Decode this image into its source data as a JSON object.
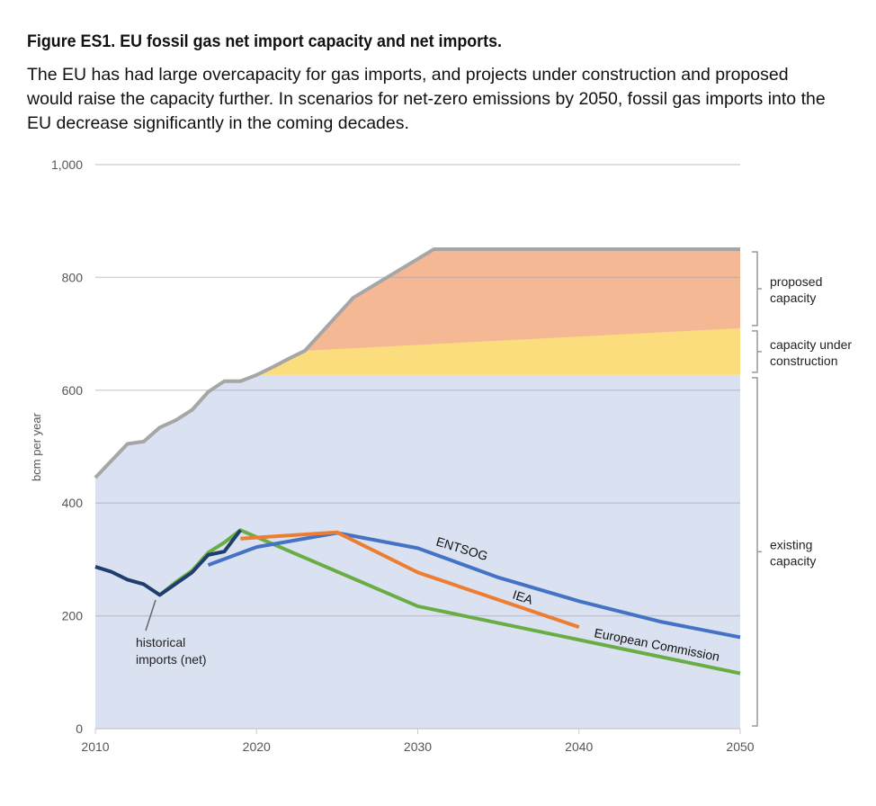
{
  "title": "Figure ES1. EU fossil gas net import capacity and net imports.",
  "subtitle": "The EU has had large overcapacity for gas imports, and projects under construction and proposed would raise the capacity further. In scenarios for net-zero emissions by 2050, fossil gas imports into the EU decrease significantly in the coming decades.",
  "chart_data": {
    "type": "area",
    "ylabel": "bcm per year",
    "xlim": [
      2010,
      2050
    ],
    "ylim": [
      0,
      1000
    ],
    "xticks": [
      "2010",
      "2020",
      "2030",
      "2040",
      "2050"
    ],
    "yticks": [
      "0",
      "200",
      "400",
      "600",
      "800",
      "1,000"
    ],
    "grid": true,
    "areas": [
      {
        "name": "existing capacity",
        "color": "#dae2f2",
        "x": [
          2010,
          2011,
          2012,
          2013,
          2014,
          2015,
          2016,
          2017,
          2018,
          2019,
          2020,
          2050
        ],
        "y": [
          445,
          475,
          505,
          509,
          534,
          547,
          565,
          597,
          616,
          616,
          627,
          627
        ]
      },
      {
        "name": "capacity under construction",
        "color": "#fcdd7e",
        "x": [
          2020,
          2021,
          2022,
          2023,
          2026,
          2050
        ],
        "y": [
          627,
          641,
          656,
          670,
          710,
          710
        ]
      },
      {
        "name": "proposed capacity",
        "color": "#f4b994",
        "x": [
          2023,
          2026,
          2031,
          2050
        ],
        "y": [
          670,
          764,
          850,
          850
        ]
      }
    ],
    "capacity_line": {
      "color": "#a6a6a6",
      "x": [
        2010,
        2011,
        2012,
        2013,
        2014,
        2015,
        2016,
        2017,
        2018,
        2019,
        2020,
        2021,
        2022,
        2023,
        2026,
        2031,
        2050
      ],
      "y": [
        445,
        475,
        505,
        509,
        534,
        547,
        565,
        597,
        616,
        616,
        627,
        641,
        656,
        670,
        764,
        850,
        850
      ]
    },
    "series": [
      {
        "name": "European Commission",
        "color": "#6aad45",
        "x": [
          2014,
          2015,
          2016,
          2017,
          2018,
          2019,
          2030,
          2050
        ],
        "y": [
          237,
          260,
          280,
          312,
          330,
          352,
          217,
          98
        ]
      },
      {
        "name": "ENTSOG",
        "color": "#4472c4",
        "x": [
          2017,
          2020,
          2025,
          2030,
          2035,
          2040,
          2045,
          2050
        ],
        "y": [
          290,
          322,
          347,
          320,
          268,
          226,
          190,
          162
        ]
      },
      {
        "name": "IEA",
        "color": "#ed7d31",
        "x": [
          2019,
          2025,
          2030,
          2040
        ],
        "y": [
          337,
          348,
          277,
          180
        ]
      },
      {
        "name": "historical imports (net)",
        "color": "#1f3e6e",
        "x": [
          2010,
          2011,
          2012,
          2013,
          2014,
          2015,
          2016,
          2017,
          2018,
          2019
        ],
        "y": [
          287,
          278,
          264,
          256,
          237,
          257,
          277,
          308,
          314,
          352
        ]
      }
    ],
    "bracket_labels": [
      {
        "line1": "proposed",
        "line2": "capacity",
        "range": [
          710,
          850
        ]
      },
      {
        "line1": "capacity under",
        "line2": "construction",
        "range": [
          627,
          710
        ]
      },
      {
        "line1": "existing",
        "line2": "capacity",
        "range": [
          0,
          627
        ]
      }
    ],
    "annotations": {
      "historical_1": "historical",
      "historical_2": "imports (net)",
      "entsog": "ENTSOG",
      "iea": "IEA",
      "ec": "European Commission"
    }
  }
}
